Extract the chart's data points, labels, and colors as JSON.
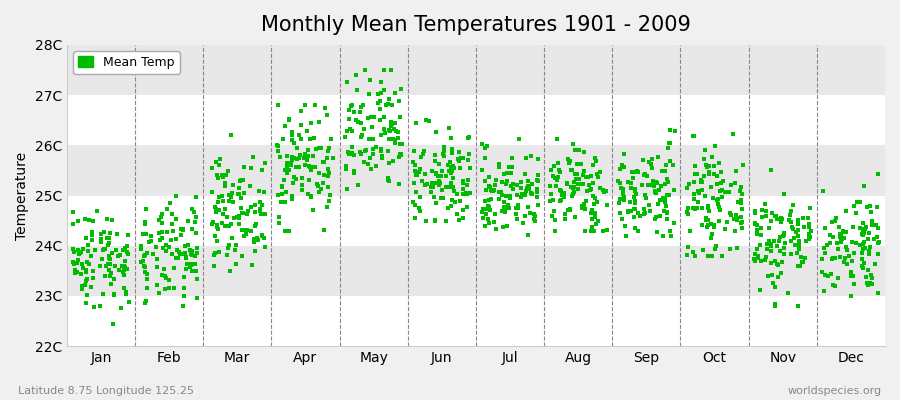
{
  "title": "Monthly Mean Temperatures 1901 - 2009",
  "ylabel": "Temperature",
  "xlabel_bottom": "Latitude 8.75 Longitude 125.25",
  "watermark": "worldspecies.org",
  "legend_label": "Mean Temp",
  "marker_color": "#00bb00",
  "marker_size": 3.5,
  "ylim": [
    22,
    28
  ],
  "ytick_labels": [
    "22C",
    "23C",
    "24C",
    "25C",
    "26C",
    "27C",
    "28C"
  ],
  "ytick_values": [
    22,
    23,
    24,
    25,
    26,
    27,
    28
  ],
  "months": [
    "Jan",
    "Feb",
    "Mar",
    "Apr",
    "May",
    "Jun",
    "Jul",
    "Aug",
    "Sep",
    "Oct",
    "Nov",
    "Dec"
  ],
  "monthly_stats": {
    "Jan": {
      "mean": 23.75,
      "std": 0.5,
      "clip": [
        22.2,
        25.2
      ]
    },
    "Feb": {
      "mean": 23.8,
      "std": 0.5,
      "clip": [
        22.4,
        25.2
      ]
    },
    "Mar": {
      "mean": 24.7,
      "std": 0.52,
      "clip": [
        23.5,
        26.2
      ]
    },
    "Apr": {
      "mean": 25.65,
      "std": 0.58,
      "clip": [
        24.3,
        26.8
      ]
    },
    "May": {
      "mean": 26.15,
      "std": 0.62,
      "clip": [
        24.8,
        27.5
      ]
    },
    "Jun": {
      "mean": 25.3,
      "std": 0.48,
      "clip": [
        24.5,
        26.5
      ]
    },
    "Jul": {
      "mean": 25.05,
      "std": 0.42,
      "clip": [
        24.0,
        26.5
      ]
    },
    "Aug": {
      "mean": 25.1,
      "std": 0.45,
      "clip": [
        24.3,
        26.5
      ]
    },
    "Sep": {
      "mean": 25.05,
      "std": 0.48,
      "clip": [
        24.2,
        26.3
      ]
    },
    "Oct": {
      "mean": 24.85,
      "std": 0.5,
      "clip": [
        23.8,
        26.3
      ]
    },
    "Nov": {
      "mean": 24.1,
      "std": 0.52,
      "clip": [
        22.8,
        25.5
      ]
    },
    "Dec": {
      "mean": 24.05,
      "std": 0.52,
      "clip": [
        23.0,
        25.5
      ]
    }
  },
  "n_years": 109,
  "background_color": "#f0f0f0",
  "band_colors": [
    "#ffffff",
    "#e8e8e8"
  ],
  "title_fontsize": 15,
  "axis_fontsize": 10,
  "tick_fontsize": 10
}
